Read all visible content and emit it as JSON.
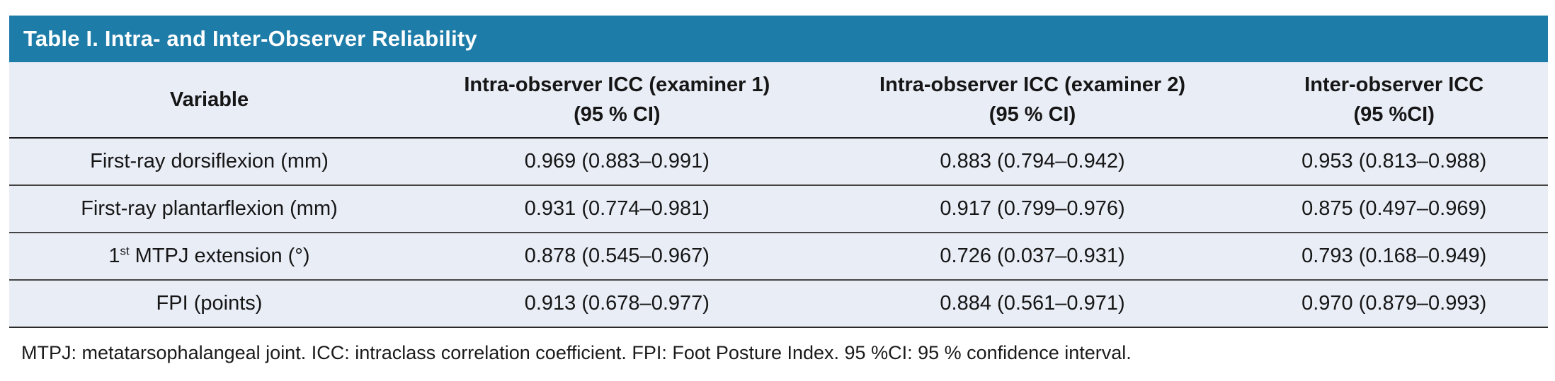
{
  "title": "Table I. Intra- and Inter-Observer Reliability",
  "colors": {
    "header_bar_bg": "#1e7ca8",
    "table_body_bg": "#e9edf6",
    "rule_color": "#454545",
    "title_text": "#ffffff",
    "body_text": "#161616"
  },
  "table": {
    "headers": [
      {
        "line1": "Variable",
        "line2": ""
      },
      {
        "line1": "Intra-observer ICC (examiner 1)",
        "line2": "(95 % CI)"
      },
      {
        "line1": "Intra-observer ICC (examiner 2)",
        "line2": "(95 % CI)"
      },
      {
        "line1": "Inter-observer ICC",
        "line2": "(95 %CI)"
      }
    ],
    "rows": [
      {
        "variable": {
          "pre": "First-ray dorsiflexion (mm)",
          "sup": "",
          "post": ""
        },
        "values": [
          "0.969 (0.883–0.991)",
          "0.883 (0.794–0.942)",
          "0.953 (0.813–0.988)"
        ]
      },
      {
        "variable": {
          "pre": "First-ray plantarflexion (mm)",
          "sup": "",
          "post": ""
        },
        "values": [
          "0.931 (0.774–0.981)",
          "0.917 (0.799–0.976)",
          "0.875 (0.497–0.969)"
        ]
      },
      {
        "variable": {
          "pre": "1",
          "sup": "st",
          "post": " MTPJ extension (°)"
        },
        "values": [
          "0.878 (0.545–0.967)",
          "0.726 (0.037–0.931)",
          "0.793 (0.168–0.949)"
        ]
      },
      {
        "variable": {
          "pre": "FPI (points)",
          "sup": "",
          "post": ""
        },
        "values": [
          "0.913 (0.678–0.977)",
          "0.884 (0.561–0.971)",
          "0.970 (0.879–0.993)"
        ]
      }
    ]
  },
  "footnote": "MTPJ: metatarsophalangeal joint. ICC: intraclass correlation coefficient. FPI: Foot Posture Index. 95 %CI: 95 % confidence interval."
}
